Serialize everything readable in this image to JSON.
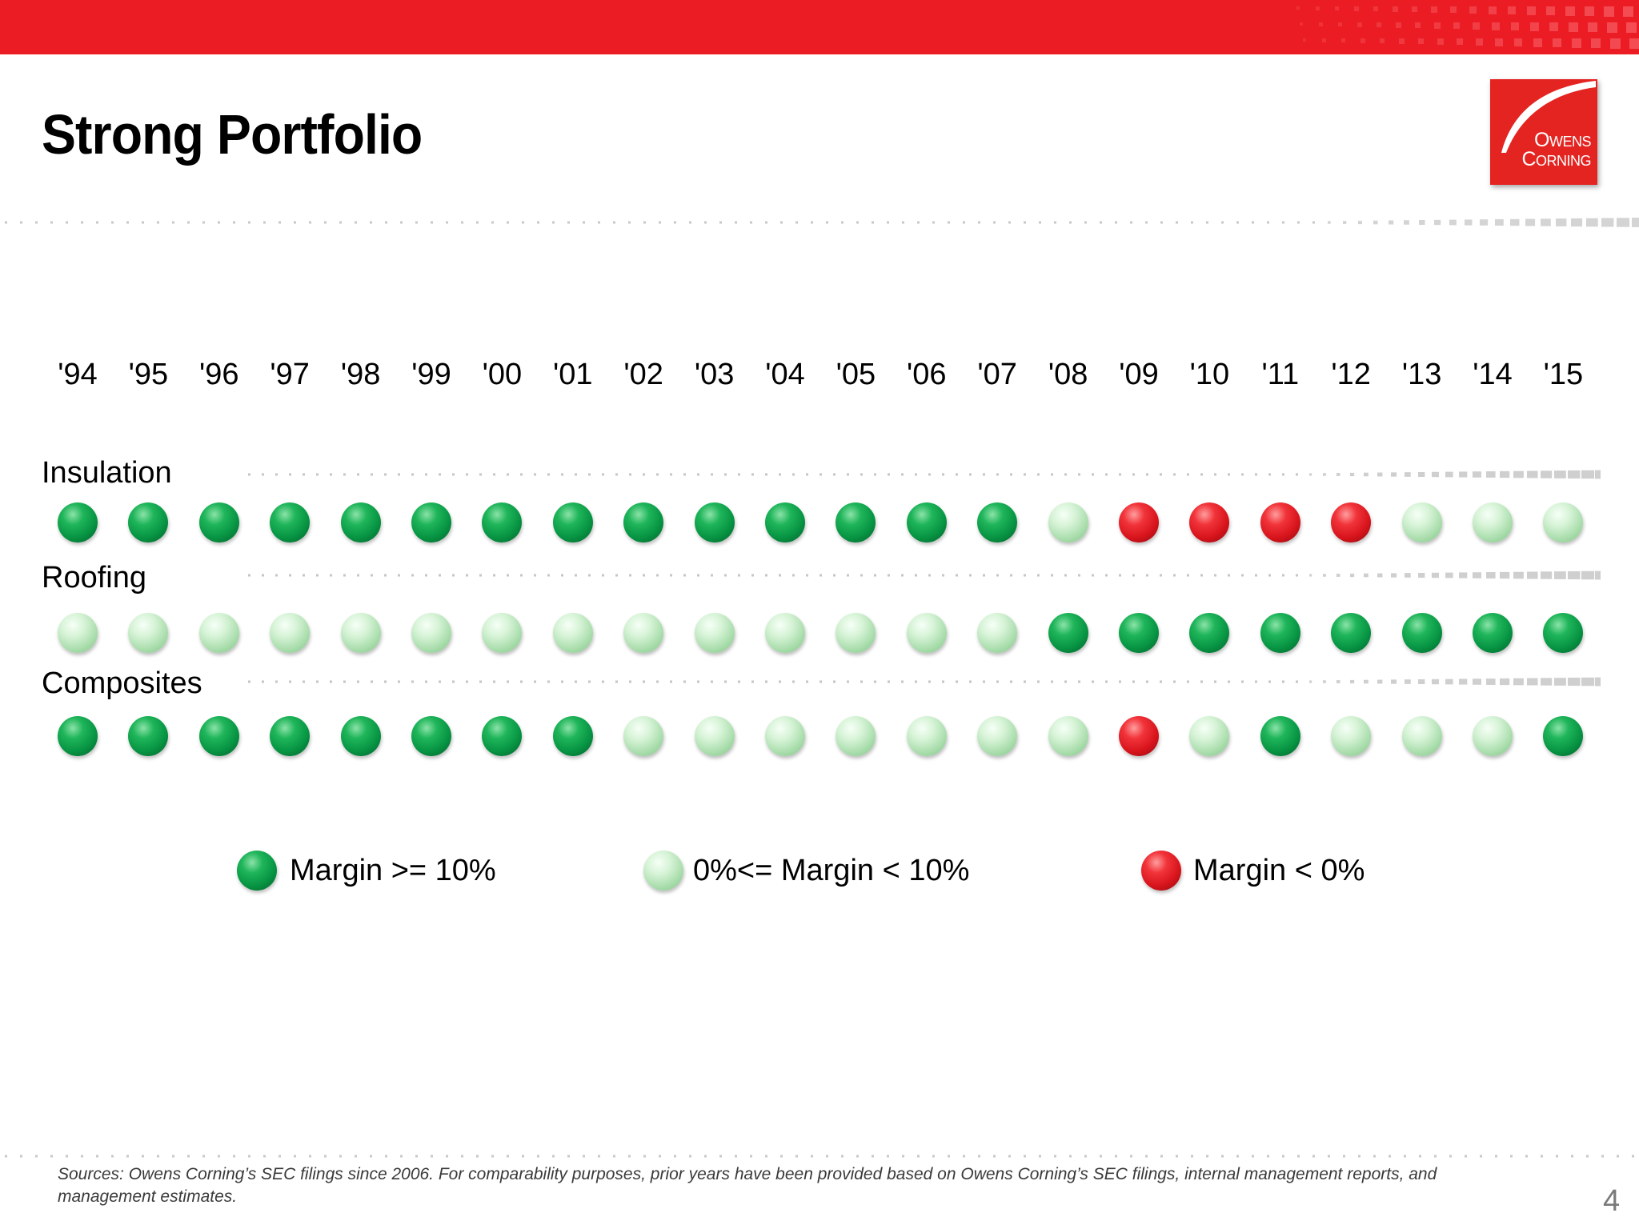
{
  "slide": {
    "title": "Strong Portfolio",
    "logo_text": "Owens Corning",
    "sources": "Sources:  Owens Corning’s SEC filings since 2006. For comparability purposes, prior years have been provided based on Owens Corning’s SEC filings, internal management reports, and management estimates.",
    "page_number": "4"
  },
  "colors": {
    "brand_red": "#ec1c24",
    "margin_high": "#079443",
    "margin_low": "#a9ddac",
    "margin_negative": "#d8141c"
  },
  "chart_data": {
    "type": "heatmap",
    "title": "",
    "x": [
      "'94",
      "'95",
      "'96",
      "'97",
      "'98",
      "'99",
      "'00",
      "'01",
      "'02",
      "'03",
      "'04",
      "'05",
      "'06",
      "'07",
      "'08",
      "'09",
      "'10",
      "'11",
      "'12",
      "'13",
      "'14",
      "'15"
    ],
    "rows": [
      {
        "label": "Insulation",
        "values": [
          "high",
          "high",
          "high",
          "high",
          "high",
          "high",
          "high",
          "high",
          "high",
          "high",
          "high",
          "high",
          "high",
          "high",
          "low",
          "negative",
          "negative",
          "negative",
          "negative",
          "low",
          "low",
          "low"
        ]
      },
      {
        "label": "Roofing",
        "values": [
          "low",
          "low",
          "low",
          "low",
          "low",
          "low",
          "low",
          "low",
          "low",
          "low",
          "low",
          "low",
          "low",
          "low",
          "high",
          "high",
          "high",
          "high",
          "high",
          "high",
          "high",
          "high"
        ]
      },
      {
        "label": "Composites",
        "values": [
          "high",
          "high",
          "high",
          "high",
          "high",
          "high",
          "high",
          "high",
          "low",
          "low",
          "low",
          "low",
          "low",
          "low",
          "low",
          "negative",
          "low",
          "high",
          "low",
          "low",
          "low",
          "high"
        ]
      }
    ],
    "legend": [
      {
        "key": "high",
        "label": "Margin >= 10%"
      },
      {
        "key": "low",
        "label": "0%<= Margin < 10%"
      },
      {
        "key": "negative",
        "label": "Margin < 0%"
      }
    ],
    "legend_position": "bottom"
  }
}
